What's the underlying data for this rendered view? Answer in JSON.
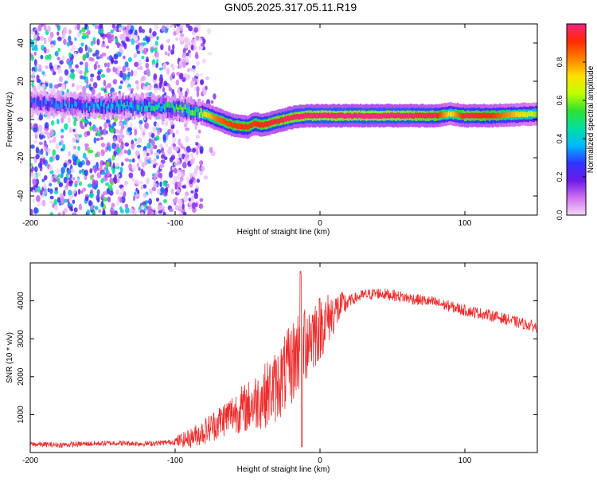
{
  "title": "GN05.2025.317.05.11.R19",
  "chart_data": [
    {
      "type": "heatmap",
      "xlabel": "Height of straight line (km)",
      "ylabel": "Frequency (Hz)",
      "xlim": [
        -200,
        150
      ],
      "ylim": [
        -50,
        50
      ],
      "x_ticks": [
        -200,
        -100,
        0,
        100
      ],
      "y_ticks": [
        -40,
        -20,
        0,
        20,
        40
      ],
      "colorbar": {
        "label": "Normalized spectral amplitude",
        "range": [
          0,
          1
        ],
        "ticks": [
          "0.0",
          "0.2",
          "0.4",
          "0.6",
          "0.8"
        ],
        "colors": [
          "#f2d9fa",
          "#d070f0",
          "#6a1be8",
          "#2f35ff",
          "#00b8ff",
          "#00e0a0",
          "#30e030",
          "#c0ff00",
          "#ffe000",
          "#ff8000",
          "#ff2a00",
          "#ff2080"
        ]
      },
      "ridge": {
        "x": [
          -200,
          -180,
          -160,
          -140,
          -120,
          -100,
          -90,
          -80,
          -70,
          -60,
          -50,
          -45,
          -40,
          -30,
          -20,
          -10,
          0,
          20,
          50,
          80,
          90,
          100,
          120,
          150
        ],
        "frequency": [
          9,
          8,
          7,
          7,
          7,
          6,
          5,
          3,
          0,
          -3,
          -4,
          -2,
          -3,
          -1,
          1,
          2,
          2,
          2,
          2,
          2,
          3,
          2,
          2,
          3
        ],
        "amplitude": [
          0.3,
          0.35,
          0.4,
          0.45,
          0.5,
          0.55,
          0.6,
          0.7,
          0.85,
          0.9,
          0.9,
          0.9,
          0.92,
          0.95,
          0.97,
          0.98,
          1.0,
          1.0,
          1.0,
          0.95,
          0.7,
          0.95,
          0.9,
          0.6
        ]
      }
    },
    {
      "type": "line",
      "xlabel": "Height of straight line (km)",
      "ylabel": "SNR (10 * v/v)",
      "xlim": [
        -200,
        150
      ],
      "ylim": [
        0,
        5000
      ],
      "x_ticks": [
        -200,
        -100,
        0,
        100
      ],
      "y_ticks": [
        1000,
        2000,
        3000,
        4000
      ],
      "color": "#ee2b2b",
      "series": [
        {
          "name": "SNR",
          "x": [
            -200,
            -180,
            -160,
            -140,
            -120,
            -100,
            -90,
            -80,
            -70,
            -60,
            -50,
            -40,
            -30,
            -20,
            -15,
            -10,
            0,
            10,
            20,
            30,
            40,
            50,
            60,
            80,
            100,
            120,
            150
          ],
          "values": [
            220,
            200,
            230,
            250,
            230,
            280,
            380,
            550,
            800,
            1050,
            1200,
            1450,
            1750,
            2300,
            2700,
            3000,
            3300,
            3700,
            4000,
            4150,
            4200,
            4150,
            4080,
            3950,
            3750,
            3600,
            3300
          ]
        }
      ]
    }
  ]
}
